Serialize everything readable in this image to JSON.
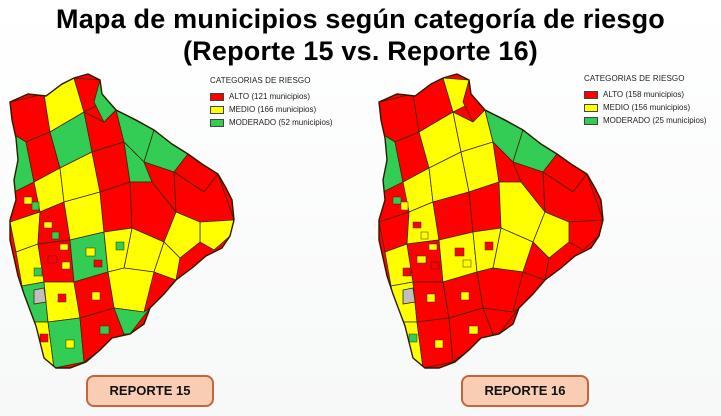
{
  "title": {
    "line1": "Mapa de municipios según categoría de riesgo",
    "line2": "(Reporte 15 vs. Reporte 16)"
  },
  "colors": {
    "alto": "#ff0000",
    "medio": "#ffff00",
    "moderado": "#33cc55",
    "sin_datos": "#bfbfbf",
    "border": "#3a2a00",
    "badge_fill": "#f8cdb4",
    "badge_border": "#c5643f"
  },
  "maps": [
    {
      "legend": {
        "title": "CATEGORIAS DE RIESGO",
        "items": [
          {
            "label": "ALTO (121 municipios)",
            "category": "alto"
          },
          {
            "label": "MEDIO (166 municipios)",
            "category": "medio"
          },
          {
            "label": "MODERADO (52 municipios)",
            "category": "moderado"
          }
        ]
      },
      "badge": "REPORTE 15"
    },
    {
      "legend": {
        "title": "CATEGORIAS DE RIESGO",
        "items": [
          {
            "label": "ALTO (158 municipios)",
            "category": "alto"
          },
          {
            "label": "MEDIO (156 municipios)",
            "category": "medio"
          },
          {
            "label": "MODERADO (25 municipios)",
            "category": "moderado"
          }
        ]
      },
      "badge": "REPORTE 16"
    }
  ]
}
